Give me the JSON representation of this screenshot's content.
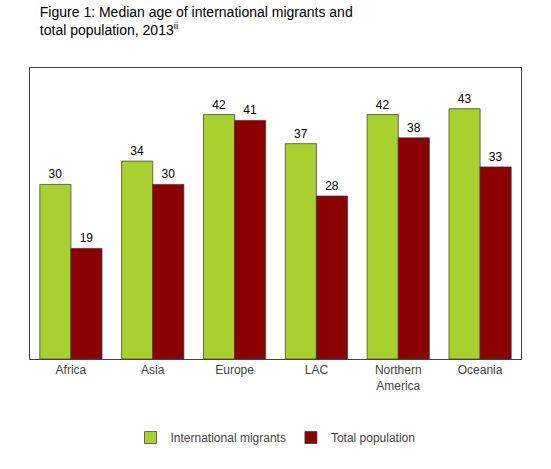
{
  "chart_data": {
    "type": "bar",
    "title": "Figure 1: Median age of international migrants and\ntotal population, 2013",
    "annotations": [
      "ii"
    ],
    "categories": [
      "Africa",
      "Asia",
      "Europe",
      "LAC",
      "Northern\nAmerica",
      "Oceania"
    ],
    "series": [
      {
        "name": "International migrants",
        "color": "#a8d130",
        "values": [
          30,
          34,
          42,
          37,
          42,
          43
        ]
      },
      {
        "name": "Total population",
        "color": "#8b0000",
        "values": [
          19,
          30,
          41,
          28,
          38,
          33
        ]
      }
    ],
    "ylim": [
      0,
      50
    ],
    "grid": false,
    "legend": "bottom",
    "data_labels": true,
    "tick_labels": "x"
  }
}
